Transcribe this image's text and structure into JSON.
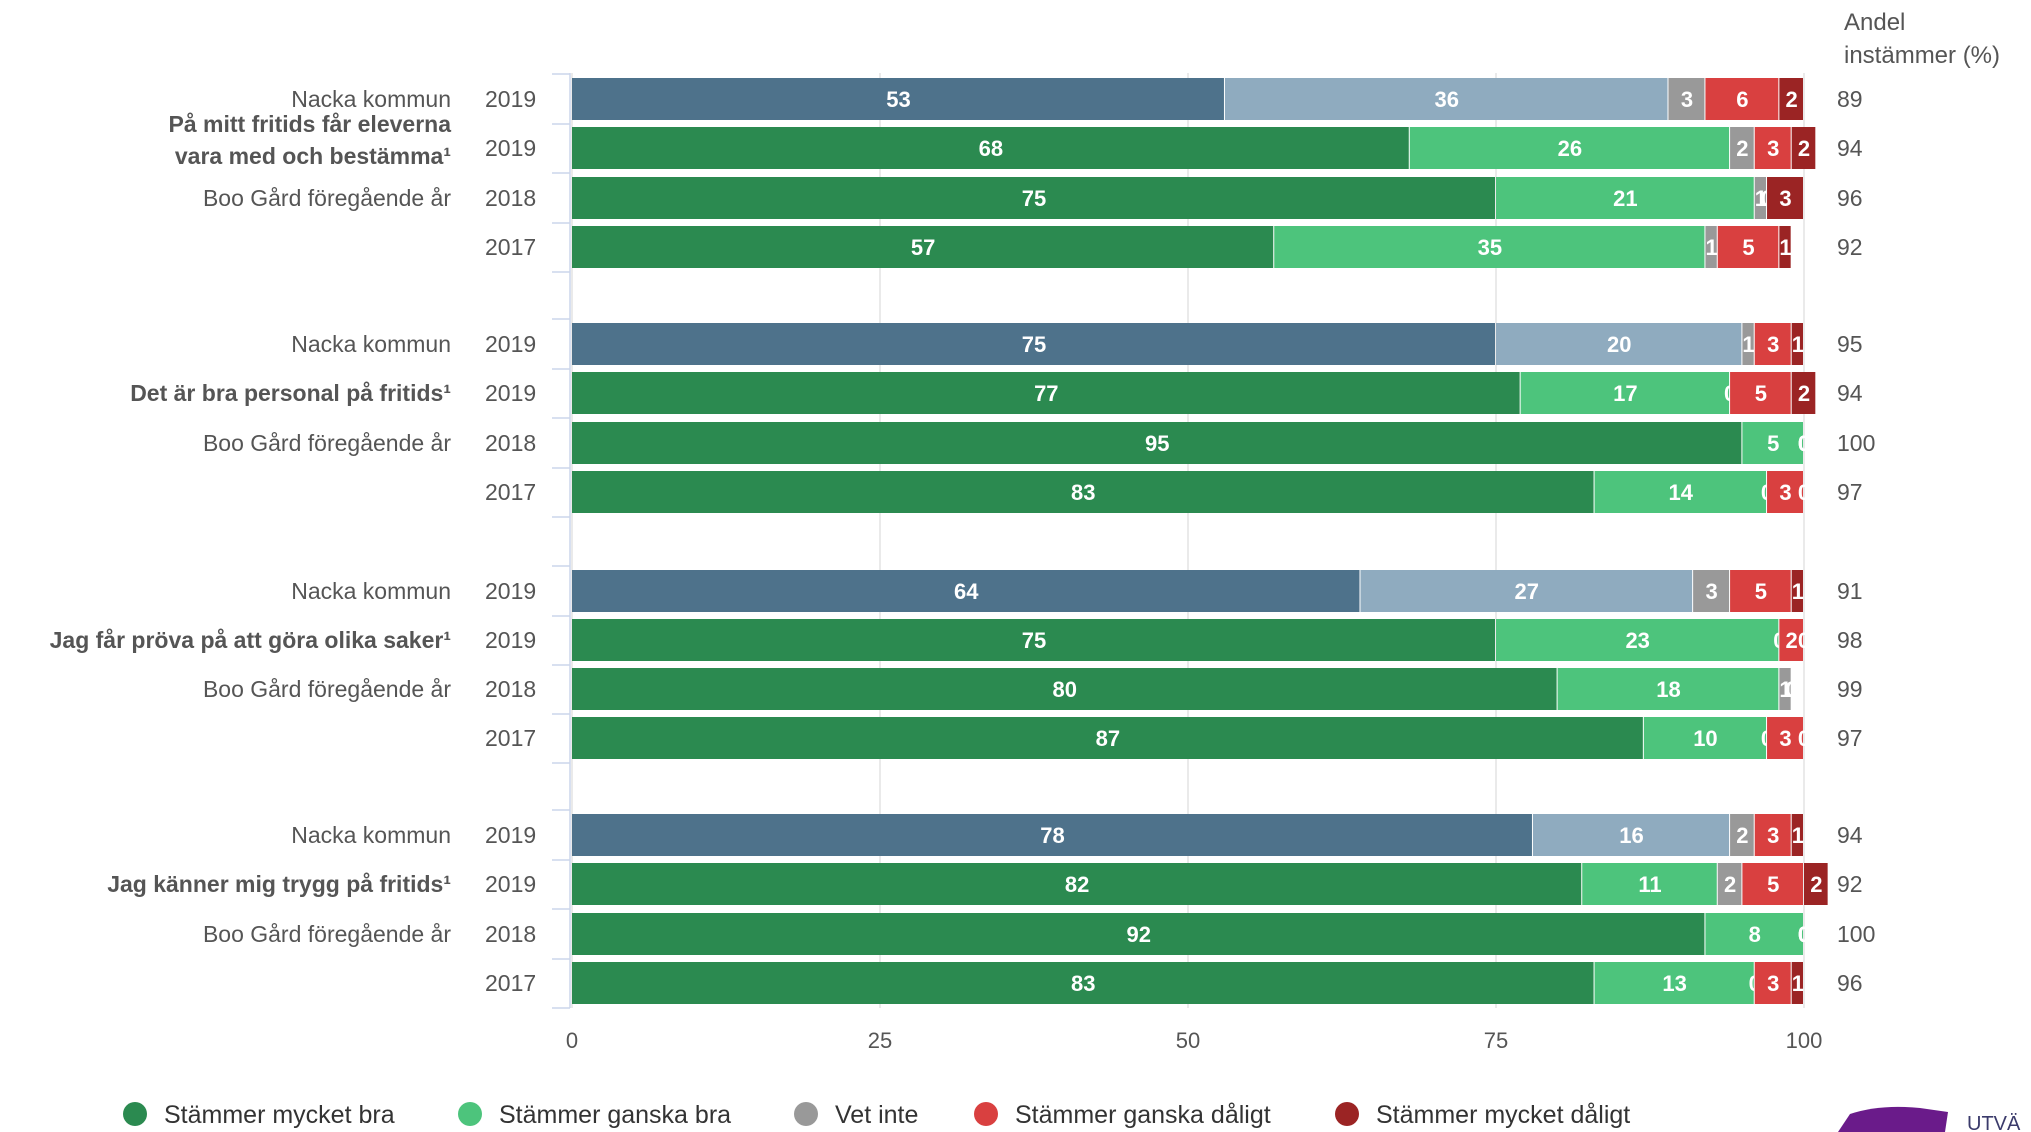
{
  "chart_data": {
    "type": "bar",
    "orientation": "horizontal",
    "stacked": true,
    "right_header": [
      "Andel",
      "instämmer (%)"
    ],
    "xlim": [
      0,
      100
    ],
    "xticks": [
      0,
      25,
      50,
      75,
      100
    ],
    "grid": true,
    "legend_position": "bottom",
    "legend": [
      {
        "name": "Stämmer mycket bra",
        "color": "#2b8a50"
      },
      {
        "name": "Stämmer ganska bra",
        "color": "#4dc47c"
      },
      {
        "name": "Vet inte",
        "color": "#999999"
      },
      {
        "name": "Stämmer ganska dåligt",
        "color": "#d94040"
      },
      {
        "name": "Stämmer mycket dåligt",
        "color": "#9b2424"
      }
    ],
    "kommun_colors": [
      "#4e728b",
      "#8fabbf",
      "#999999",
      "#d94040",
      "#9b2424"
    ],
    "groups": [
      {
        "question": [
          "På mitt fritids får eleverna",
          "vara med och bestämma¹"
        ],
        "rows": [
          {
            "label": "Nacka kommun",
            "year": "2019",
            "kommun": true,
            "values": [
              53,
              36,
              3,
              6,
              2
            ],
            "agree": "89"
          },
          {
            "label": "",
            "year": "2019",
            "kommun": false,
            "values": [
              68,
              26,
              2,
              3,
              2
            ],
            "agree": "94"
          },
          {
            "label": "Boo Gård föregående år",
            "year": "2018",
            "kommun": false,
            "values": [
              75,
              21,
              1,
              0,
              3
            ],
            "agree": "96"
          },
          {
            "label": "",
            "year": "2017",
            "kommun": false,
            "values": [
              57,
              35,
              1,
              5,
              1
            ],
            "agree": "92"
          }
        ]
      },
      {
        "question": [
          "Det är bra personal på fritids¹"
        ],
        "rows": [
          {
            "label": "Nacka kommun",
            "year": "2019",
            "kommun": true,
            "values": [
              75,
              20,
              1,
              3,
              1
            ],
            "agree": "95"
          },
          {
            "label": "",
            "year": "2019",
            "kommun": false,
            "values": [
              77,
              17,
              0,
              5,
              2
            ],
            "agree": "94"
          },
          {
            "label": "Boo Gård föregående år",
            "year": "2018",
            "kommun": false,
            "values": [
              95,
              5,
              0,
              0,
              0
            ],
            "agree": "100"
          },
          {
            "label": "",
            "year": "2017",
            "kommun": false,
            "values": [
              83,
              14,
              0,
              3,
              0
            ],
            "agree": "97"
          }
        ]
      },
      {
        "question": [
          "Jag får pröva på att göra olika saker¹"
        ],
        "rows": [
          {
            "label": "Nacka kommun",
            "year": "2019",
            "kommun": true,
            "values": [
              64,
              27,
              3,
              5,
              1
            ],
            "agree": "91"
          },
          {
            "label": "",
            "year": "2019",
            "kommun": false,
            "values": [
              75,
              23,
              0,
              2,
              0
            ],
            "agree": "98"
          },
          {
            "label": "Boo Gård föregående år",
            "year": "2018",
            "kommun": false,
            "values": [
              80,
              18,
              1,
              0,
              0
            ],
            "agree": "99"
          },
          {
            "label": "",
            "year": "2017",
            "kommun": false,
            "values": [
              87,
              10,
              0,
              3,
              0
            ],
            "agree": "97"
          }
        ]
      },
      {
        "question": [
          "Jag känner mig trygg på fritids¹"
        ],
        "rows": [
          {
            "label": "Nacka kommun",
            "year": "2019",
            "kommun": true,
            "values": [
              78,
              16,
              2,
              3,
              1
            ],
            "agree": "94"
          },
          {
            "label": "",
            "year": "2019",
            "kommun": false,
            "values": [
              82,
              11,
              2,
              5,
              2
            ],
            "agree": "92"
          },
          {
            "label": "Boo Gård föregående år",
            "year": "2018",
            "kommun": false,
            "values": [
              92,
              8,
              0,
              0,
              0
            ],
            "agree": "100"
          },
          {
            "label": "",
            "year": "2017",
            "kommun": false,
            "values": [
              83,
              13,
              0,
              3,
              1
            ],
            "agree": "96"
          }
        ]
      }
    ]
  },
  "logo": {
    "text": "UTVÄ"
  }
}
